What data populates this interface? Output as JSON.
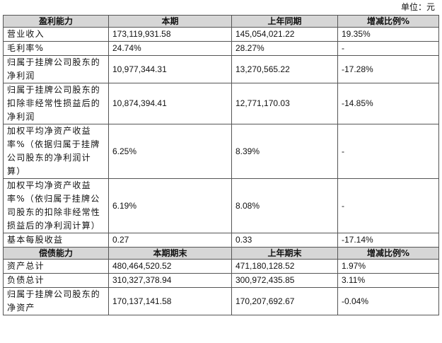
{
  "unit_label": "单位：元",
  "sections": [
    {
      "headers": [
        "盈利能力",
        "本期",
        "上年同期",
        "增减比例%"
      ],
      "rows": [
        {
          "name": "营业收入",
          "current": "173,119,931.58",
          "previous": "145,054,021.22",
          "change": "19.35%"
        },
        {
          "name": "毛利率%",
          "current": "24.74%",
          "previous": "28.27%",
          "change": "-"
        },
        {
          "name": "归属于挂牌公司股东的净利润",
          "current": "10,977,344.31",
          "previous": "13,270,565.22",
          "change": "-17.28%"
        },
        {
          "name": "归属于挂牌公司股东的扣除非经常性损益后的净利润",
          "current": "10,874,394.41",
          "previous": "12,771,170.03",
          "change": "-14.85%"
        },
        {
          "name": "加权平均净资产收益率%（依据归属于挂牌公司股东的净利润计算）",
          "current": "6.25%",
          "previous": "8.39%",
          "change": "-"
        },
        {
          "name": "加权平均净资产收益率%（依归属于挂牌公司股东的扣除非经常性损益后的净利润计算）",
          "current": "6.19%",
          "previous": "8.08%",
          "change": "-"
        },
        {
          "name": "基本每股收益",
          "current": "0.27",
          "previous": "0.33",
          "change": "-17.14%"
        }
      ]
    },
    {
      "headers": [
        "偿债能力",
        "本期期末",
        "上年期末",
        "增减比例%"
      ],
      "rows": [
        {
          "name": "资产总计",
          "current": "480,464,520.52",
          "previous": "471,180,128.52",
          "change": "1.97%"
        },
        {
          "name": "负债总计",
          "current": "310,327,378.94",
          "previous": "300,972,435.85",
          "change": "3.11%"
        },
        {
          "name": "归属于挂牌公司股东的净资产",
          "current": "170,137,141.58",
          "previous": "170,207,692.67",
          "change": "-0.04%"
        }
      ]
    }
  ]
}
